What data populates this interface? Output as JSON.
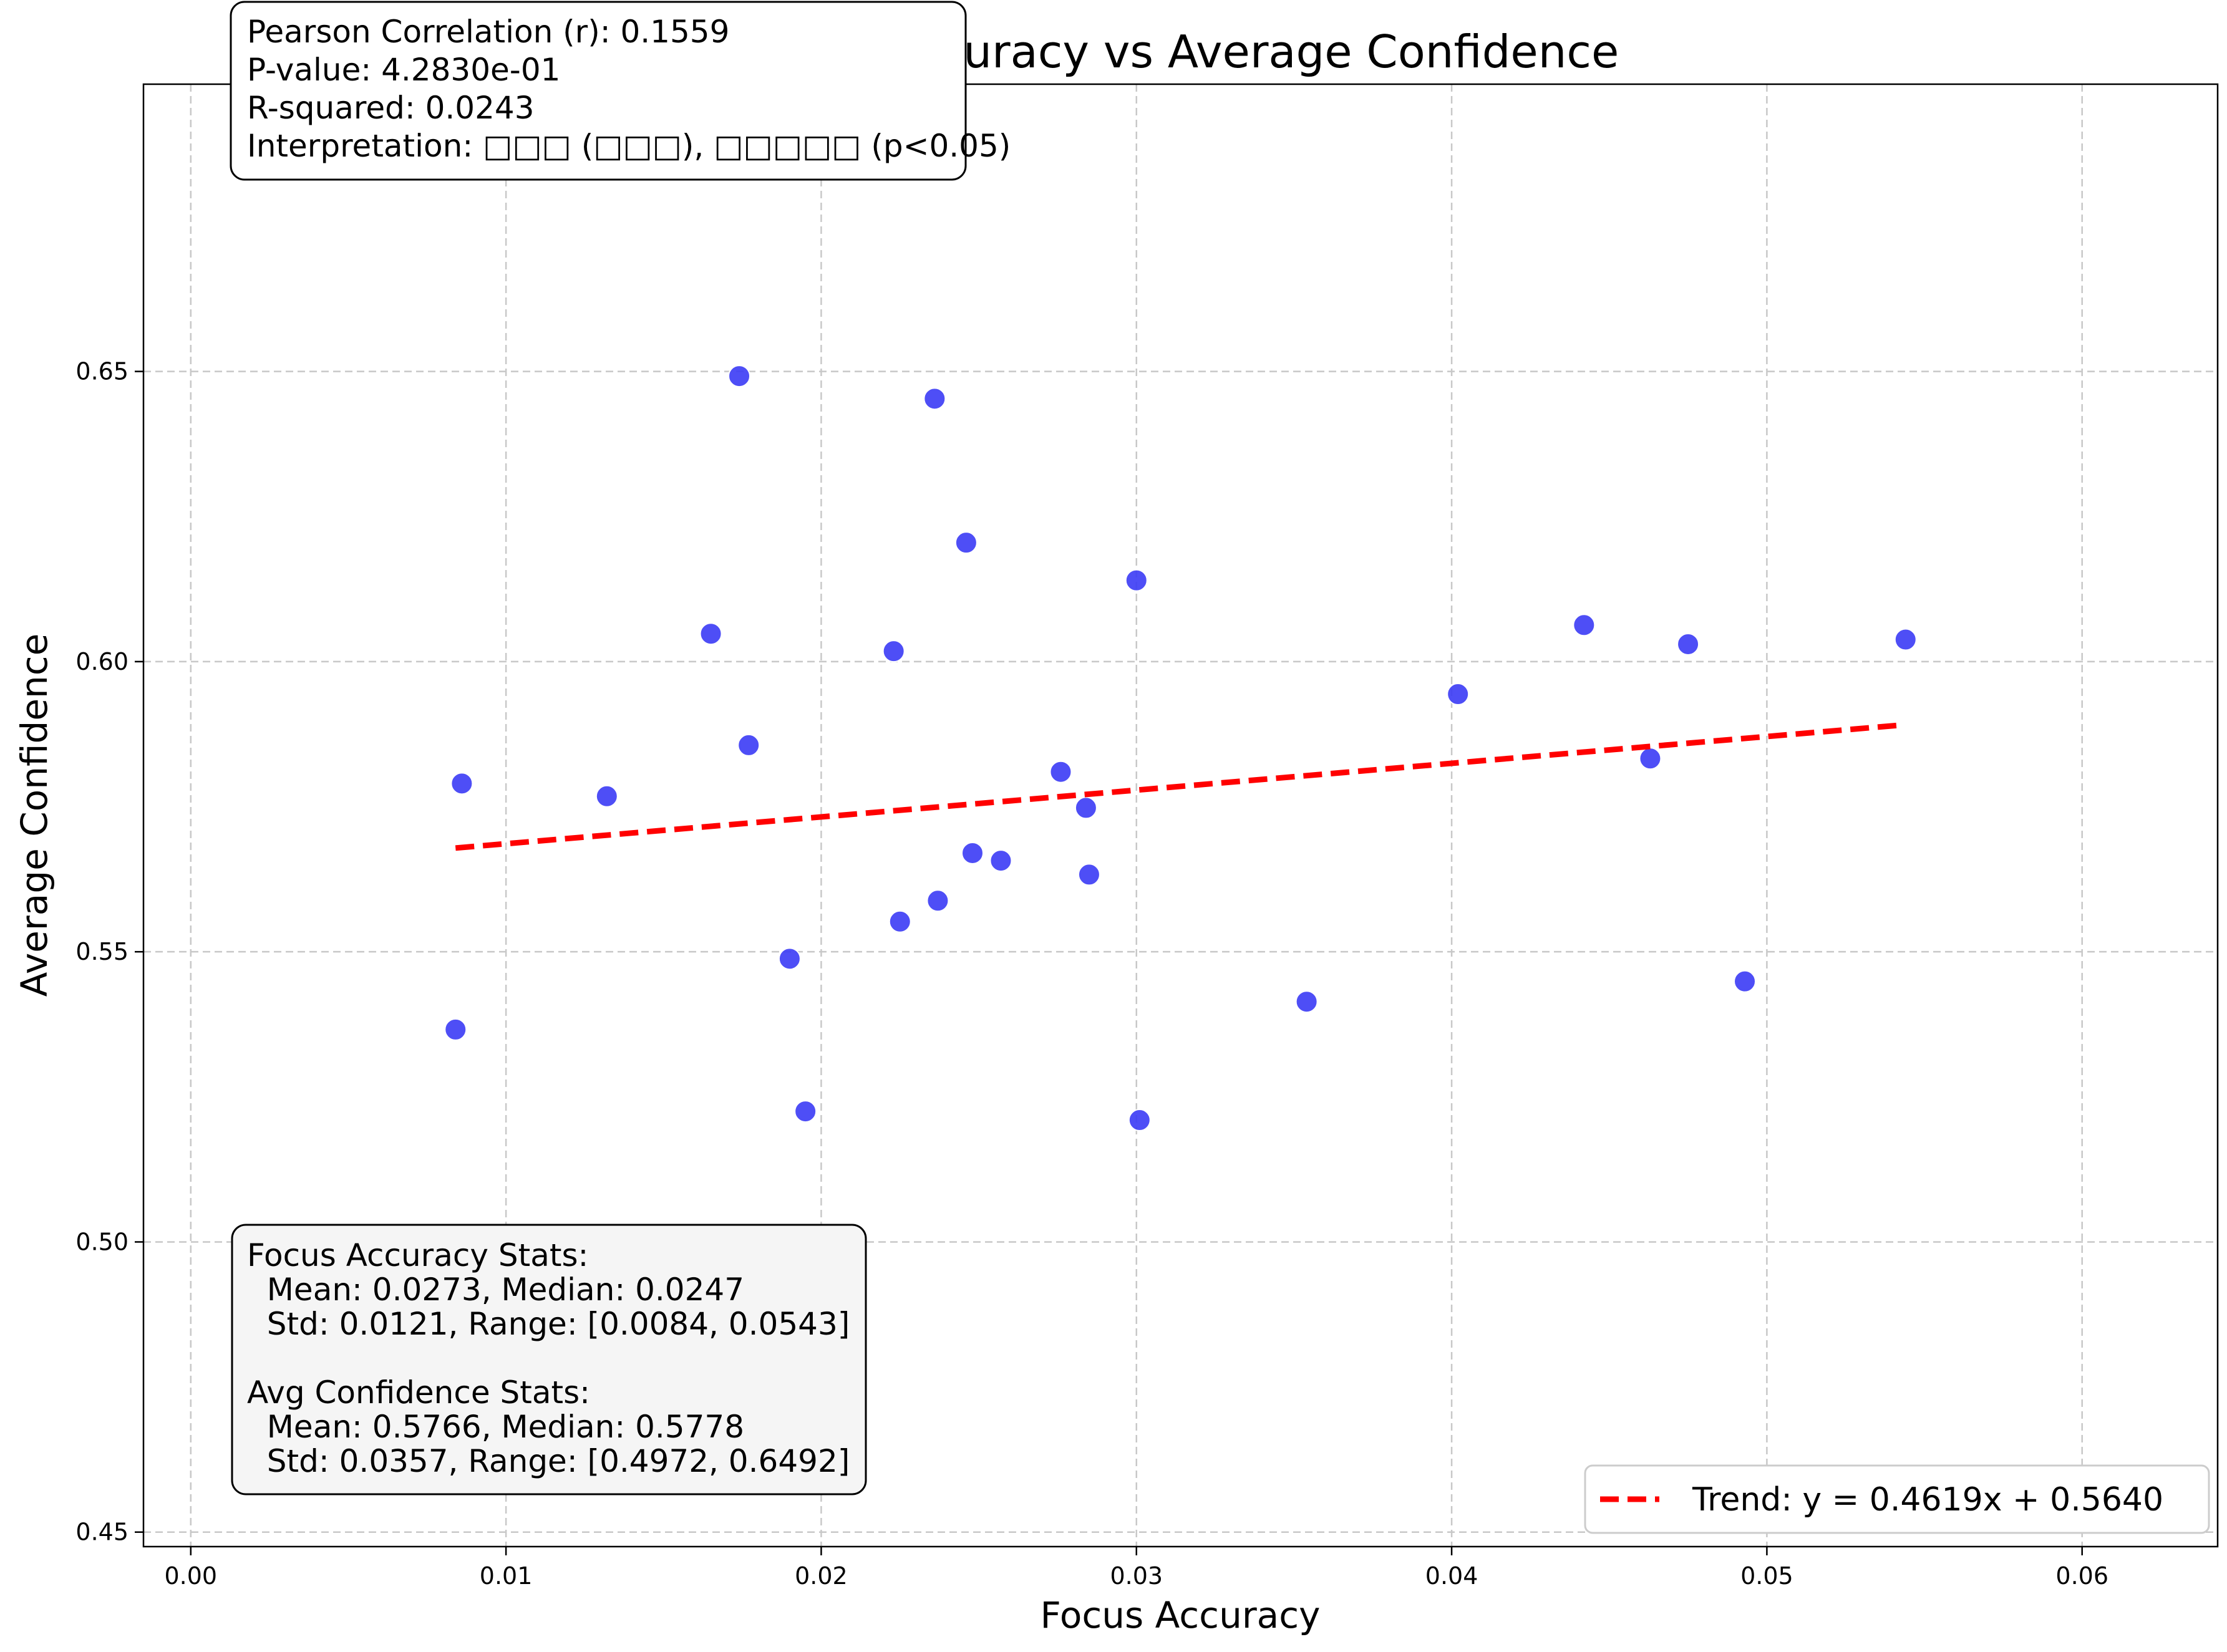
{
  "chart_data": {
    "type": "scatter",
    "title": "Focus Accuracy vs Average Confidence",
    "xlabel": "Focus Accuracy",
    "ylabel": "Average Confidence",
    "xlim": [
      -0.0015,
      0.0643
    ],
    "ylim": [
      0.4475,
      0.6995
    ],
    "xticks": [
      0.0,
      0.01,
      0.02,
      0.03,
      0.04,
      0.05,
      0.06
    ],
    "xtick_labels": [
      "0.00",
      "0.01",
      "0.02",
      "0.03",
      "0.04",
      "0.05",
      "0.06"
    ],
    "yticks": [
      0.45,
      0.5,
      0.55,
      0.6,
      0.65
    ],
    "ytick_labels": [
      "0.45",
      "0.50",
      "0.55",
      "0.60",
      "0.65"
    ],
    "grid": true,
    "point_color": "#3b3bf5",
    "trend_color": "#ff0000",
    "series": [
      {
        "x": [
          0.0174,
          0.0236,
          0.0246,
          0.03,
          0.0165,
          0.0223,
          0.0442,
          0.0475,
          0.0544,
          0.0402,
          0.0177,
          0.0086,
          0.0132,
          0.0276,
          0.0463,
          0.0284,
          0.0248,
          0.0257,
          0.0285,
          0.0237,
          0.0225,
          0.019,
          0.0354,
          0.0493,
          0.0084,
          0.0195,
          0.0301,
          0.0165
        ],
        "y": [
          0.6492,
          0.6453,
          0.6205,
          0.614,
          0.6048,
          0.6018,
          0.6063,
          0.603,
          0.6038,
          0.5944,
          0.5856,
          0.579,
          0.5768,
          0.581,
          0.5833,
          0.5748,
          0.567,
          0.5657,
          0.5633,
          0.5588,
          0.5552,
          0.5488,
          0.5414,
          0.5449,
          0.5366,
          0.5225,
          0.521,
          0.4972
        ],
        "alpha": [
          0.9,
          0.9,
          0.9,
          0.9,
          0.9,
          0.9,
          0.9,
          0.9,
          0.9,
          0.9,
          0.9,
          0.9,
          0.9,
          0.9,
          0.9,
          0.9,
          0.9,
          0.9,
          0.9,
          0.9,
          0.9,
          0.9,
          0.9,
          0.9,
          0.9,
          0.9,
          0.9,
          0.3
        ]
      }
    ],
    "trend": {
      "slope": 0.4619,
      "intercept": 0.564,
      "x_range": [
        0.0084,
        0.0543
      ]
    },
    "legend": {
      "placement": "lower-right",
      "label": "Trend: y = 0.4619x + 0.5640"
    },
    "annotations": {
      "top_box": [
        "Pearson Correlation (r): 0.1559",
        "P-value: 4.2830e-01",
        "R-squared: 0.0243",
        "Interpretation: □□□ (□□□), □□□□□ (p<0.05)"
      ],
      "bottom_box": [
        "Focus Accuracy Stats:",
        "  Mean: 0.0273, Median: 0.0247",
        "  Std: 0.0121, Range: [0.0084, 0.0543]",
        "",
        "Avg Confidence Stats:",
        "  Mean: 0.5766, Median: 0.5778",
        "  Std: 0.0357, Range: [0.4972, 0.6492]"
      ]
    }
  }
}
